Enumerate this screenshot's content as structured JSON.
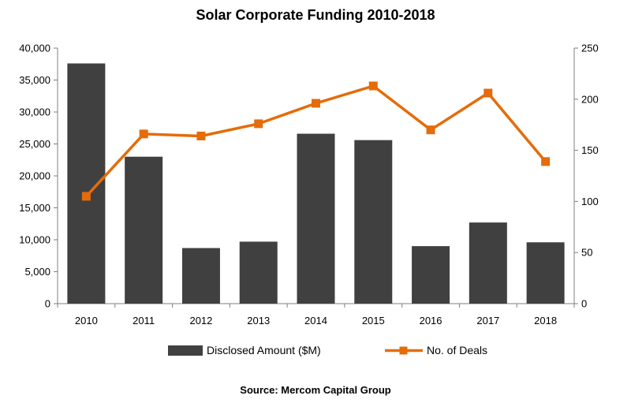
{
  "chart_data": {
    "type": "bar",
    "title": "Solar Corporate Funding 2010-2018",
    "categories": [
      "2010",
      "2011",
      "2012",
      "2013",
      "2014",
      "2015",
      "2016",
      "2017",
      "2018"
    ],
    "series": [
      {
        "name": "Disclosed Amount ($M)",
        "type": "bar",
        "axis": "left",
        "color": "#404040",
        "values": [
          37600,
          23000,
          8700,
          9700,
          26600,
          25600,
          9000,
          12700,
          9600
        ]
      },
      {
        "name": "No. of Deals",
        "type": "line",
        "axis": "right",
        "color": "#E46C0A",
        "marker": "square",
        "values": [
          105,
          166,
          164,
          176,
          196,
          213,
          170,
          206,
          139
        ]
      }
    ],
    "y_left": {
      "ylim": [
        0,
        40000
      ],
      "ticks": [
        "0",
        "5,000",
        "10,000",
        "15,000",
        "20,000",
        "25,000",
        "30,000",
        "35,000",
        "40,000"
      ]
    },
    "y_right": {
      "ylim": [
        0,
        250
      ],
      "ticks": [
        "0",
        "50",
        "100",
        "150",
        "200",
        "250"
      ]
    },
    "grid": false,
    "legend": "bottom",
    "source": "Source: Mercom Capital Group"
  }
}
